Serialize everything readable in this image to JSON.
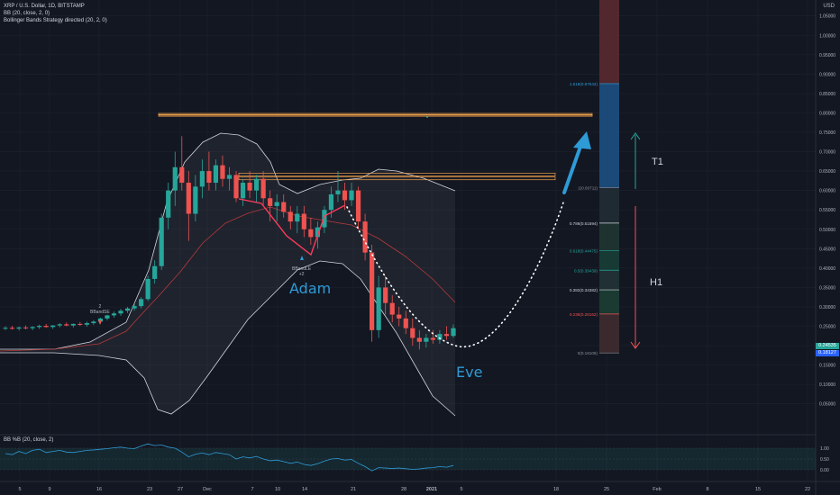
{
  "legend": {
    "line1": "XRP / U.S. Dollar, 1D, BITSTAMP",
    "line2": "BB (20, close, 2, 0)",
    "line3": "Bollinger Bands Strategy directed (20, 2, 0)"
  },
  "sub_legend": "BB %B (20, close, 2)",
  "axis_unit": "USD",
  "annotations": {
    "adam": "Adam",
    "eve": "Eve",
    "t1": "T1",
    "h1": "H1"
  },
  "signals": [
    {
      "line1": "2",
      "line2": "BBandSE"
    },
    {
      "line1": "BBandLE",
      "line2": "+2"
    }
  ],
  "price_tags": [
    {
      "label": "0.24535",
      "color": "#26a69a"
    },
    {
      "label": "0.18127",
      "color": "#2962ff"
    }
  ],
  "colors": {
    "up": "#26a69a",
    "down": "#ef5350",
    "band": "#d1d4dc",
    "basis": "#b33a3a",
    "resistance": "#f0a04b",
    "pattern": "#2e9bd6",
    "fib_red": "#5a2a30",
    "fib_blue": "#1c4a78"
  },
  "chart_data": {
    "type": "candlestick",
    "symbol": "XRP / U.S. Dollar",
    "interval": "1D",
    "exchange": "BITSTAMP",
    "x_tick_labels": [
      "5",
      "9",
      "16",
      "23",
      "27",
      "Dec",
      "7",
      "10",
      "14",
      "21",
      "28",
      "2021",
      "5",
      "18",
      "25",
      "Feb",
      "8",
      "15",
      "22"
    ],
    "y_tick_labels": [
      "1.10000",
      "1.05000",
      "1.00000",
      "0.95000",
      "0.90000",
      "0.85000",
      "0.80000",
      "0.75000",
      "0.70000",
      "0.65000",
      "0.60000",
      "0.55000",
      "0.50000",
      "0.45000",
      "0.40000",
      "0.35000",
      "0.30000",
      "0.25000",
      "0.20000",
      "0.15000",
      "0.10000",
      "0.05000"
    ],
    "y_range": [
      0.03,
      1.13
    ],
    "candles": [
      [
        0.245,
        0.25,
        0.24,
        0.246
      ],
      [
        0.246,
        0.251,
        0.241,
        0.244
      ],
      [
        0.244,
        0.249,
        0.239,
        0.247
      ],
      [
        0.247,
        0.252,
        0.242,
        0.245
      ],
      [
        0.245,
        0.25,
        0.24,
        0.248
      ],
      [
        0.248,
        0.254,
        0.243,
        0.251
      ],
      [
        0.251,
        0.256,
        0.246,
        0.248
      ],
      [
        0.248,
        0.253,
        0.243,
        0.252
      ],
      [
        0.252,
        0.258,
        0.247,
        0.255
      ],
      [
        0.255,
        0.26,
        0.25,
        0.252
      ],
      [
        0.252,
        0.257,
        0.247,
        0.256
      ],
      [
        0.256,
        0.261,
        0.251,
        0.254
      ],
      [
        0.254,
        0.262,
        0.249,
        0.258
      ],
      [
        0.258,
        0.266,
        0.253,
        0.262
      ],
      [
        0.262,
        0.272,
        0.256,
        0.27
      ],
      [
        0.27,
        0.28,
        0.265,
        0.278
      ],
      [
        0.278,
        0.288,
        0.272,
        0.283
      ],
      [
        0.283,
        0.295,
        0.277,
        0.29
      ],
      [
        0.29,
        0.3,
        0.284,
        0.296
      ],
      [
        0.296,
        0.308,
        0.29,
        0.302
      ],
      [
        0.302,
        0.325,
        0.296,
        0.32
      ],
      [
        0.32,
        0.38,
        0.315,
        0.372
      ],
      [
        0.372,
        0.42,
        0.36,
        0.405
      ],
      [
        0.405,
        0.54,
        0.395,
        0.53
      ],
      [
        0.53,
        0.62,
        0.5,
        0.6
      ],
      [
        0.6,
        0.7,
        0.56,
        0.66
      ],
      [
        0.66,
        0.74,
        0.6,
        0.62
      ],
      [
        0.62,
        0.65,
        0.47,
        0.54
      ],
      [
        0.54,
        0.64,
        0.52,
        0.61
      ],
      [
        0.61,
        0.68,
        0.58,
        0.65
      ],
      [
        0.65,
        0.7,
        0.6,
        0.62
      ],
      [
        0.62,
        0.68,
        0.6,
        0.665
      ],
      [
        0.665,
        0.69,
        0.61,
        0.63
      ],
      [
        0.63,
        0.66,
        0.6,
        0.64
      ],
      [
        0.64,
        0.65,
        0.57,
        0.58
      ],
      [
        0.58,
        0.63,
        0.56,
        0.62
      ],
      [
        0.62,
        0.65,
        0.58,
        0.6
      ],
      [
        0.6,
        0.64,
        0.57,
        0.63
      ],
      [
        0.63,
        0.65,
        0.56,
        0.58
      ],
      [
        0.58,
        0.6,
        0.52,
        0.56
      ],
      [
        0.56,
        0.59,
        0.52,
        0.57
      ],
      [
        0.57,
        0.59,
        0.53,
        0.545
      ],
      [
        0.545,
        0.56,
        0.5,
        0.52
      ],
      [
        0.52,
        0.56,
        0.49,
        0.54
      ],
      [
        0.54,
        0.56,
        0.48,
        0.5
      ],
      [
        0.5,
        0.53,
        0.46,
        0.48
      ],
      [
        0.48,
        0.52,
        0.45,
        0.505
      ],
      [
        0.505,
        0.56,
        0.49,
        0.55
      ],
      [
        0.55,
        0.61,
        0.53,
        0.59
      ],
      [
        0.59,
        0.65,
        0.57,
        0.6
      ],
      [
        0.6,
        0.62,
        0.55,
        0.575
      ],
      [
        0.575,
        0.62,
        0.56,
        0.6
      ],
      [
        0.6,
        0.61,
        0.5,
        0.52
      ],
      [
        0.52,
        0.54,
        0.42,
        0.44
      ],
      [
        0.44,
        0.46,
        0.21,
        0.24
      ],
      [
        0.24,
        0.38,
        0.22,
        0.35
      ],
      [
        0.35,
        0.38,
        0.28,
        0.31
      ],
      [
        0.31,
        0.33,
        0.26,
        0.28
      ],
      [
        0.28,
        0.3,
        0.25,
        0.27
      ],
      [
        0.27,
        0.29,
        0.23,
        0.245
      ],
      [
        0.245,
        0.27,
        0.2,
        0.22
      ],
      [
        0.22,
        0.24,
        0.19,
        0.21
      ],
      [
        0.21,
        0.23,
        0.195,
        0.22
      ],
      [
        0.22,
        0.24,
        0.205,
        0.215
      ],
      [
        0.215,
        0.24,
        0.205,
        0.23
      ],
      [
        0.23,
        0.25,
        0.215,
        0.225
      ],
      [
        0.225,
        0.255,
        0.22,
        0.245
      ]
    ],
    "resistance_levels": [
      0.795,
      0.64,
      0.63
    ],
    "fib_levels": [
      {
        "label": "1.618(0.87542)",
        "value": 0.87542
      },
      {
        "label": "1(0.60711)",
        "value": 0.60711
      },
      {
        "label": "0.786(0.51594)",
        "value": 0.51594
      },
      {
        "label": "0.618(0.44475)",
        "value": 0.44475
      },
      {
        "label": "0.5(0.39439)",
        "value": 0.39439
      },
      {
        "label": "0.382(0.34382)",
        "value": 0.34382
      },
      {
        "label": "0.236(0.28162)",
        "value": 0.28162
      },
      {
        "label": "0(0.18108)",
        "value": 0.18108
      }
    ],
    "percent_b": {
      "tick_labels": [
        "1.00",
        "0.50",
        "0.00"
      ],
      "range": [
        -0.2,
        1.3
      ]
    }
  }
}
